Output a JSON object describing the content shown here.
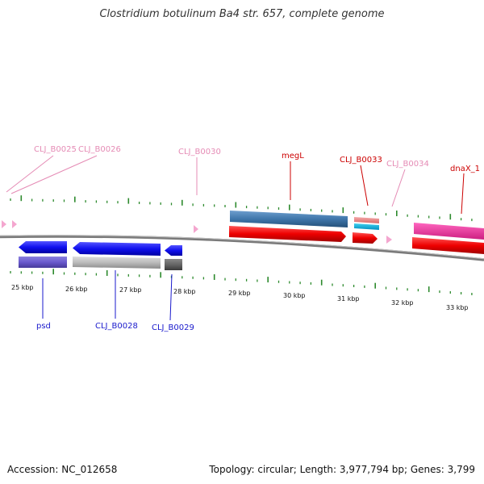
{
  "title": "Clostridium botulinum Ba4 str. 657, complete genome",
  "accession": "Accession: NC_012658",
  "stats": "Topology: circular; Length: 3,977,794 bp; Genes: 3,799",
  "colors": {
    "backbone": "#7a7a7a",
    "tick": "#2d8a2d",
    "top_label": "#e58bb5",
    "red_label": "#cc0000",
    "blue_label": "#1a1acc"
  },
  "scale_labels": [
    "25 kbp",
    "26 kbp",
    "27 kbp",
    "28 kbp",
    "29 kbp",
    "30 kbp",
    "31 kbp",
    "32 kbp",
    "33 kbp"
  ],
  "gene_labels": {
    "clj_b0025": "CLJ_B0025",
    "clj_b0026": "CLJ_B0026",
    "clj_b0030": "CLJ_B0030",
    "megl": "megL",
    "clj_b0033": "CLJ_B0033",
    "clj_b0034": "CLJ_B0034",
    "dnax_1": "dnaX_1",
    "psd": "psd",
    "clj_b0028": "CLJ_B0028",
    "clj_b0029": "CLJ_B0029"
  }
}
